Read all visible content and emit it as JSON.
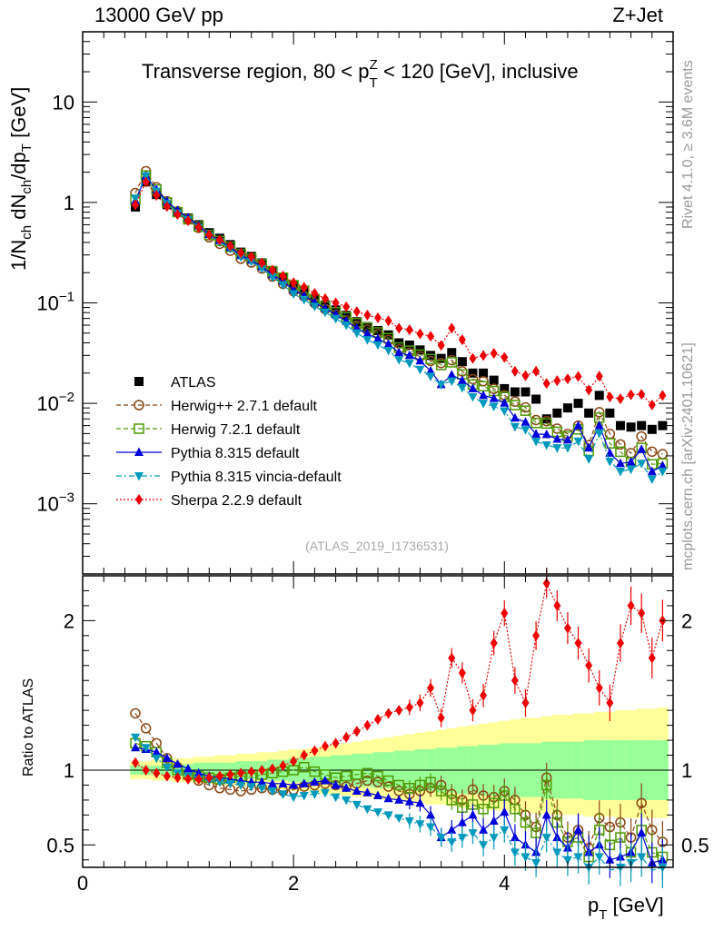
{
  "header": {
    "left": "13000 GeV pp",
    "right": "Z+Jet"
  },
  "side_labels": {
    "rivet": "Rivet 4.1.0, ≥ 3.6M events",
    "mcplots": "mcplots.cern.ch [arXiv:2401.10621]"
  },
  "chart_data": {
    "type": "scatter",
    "title": "Transverse region, 80 < p_T^Z < 120 [GeV], inclusive",
    "title_parts": {
      "a": "Transverse region, 80 < p",
      "sup": "Z",
      "sub": "T",
      "b": " < 120 [GeV], inclusive"
    },
    "watermark": "(ATLAS_2019_I1736531)",
    "xlabel": "p_T [GeV]",
    "ylabel": "1/N_ch dN_ch/dp_T [GeV]",
    "ratio_ylabel": "Ratio to ATLAS",
    "xlim": [
      0,
      5.6
    ],
    "ylim": [
      0.0002,
      50
    ],
    "ratio_ylim": [
      0.35,
      2.3
    ],
    "x_ticks": [
      0,
      2,
      4
    ],
    "y_ticks": [
      {
        "value": 10,
        "label": "10"
      },
      {
        "value": 1,
        "label": "1"
      },
      {
        "value": 0.1,
        "label": "10^-1"
      },
      {
        "value": 0.01,
        "label": "10^-2"
      },
      {
        "value": 0.001,
        "label": "10^-3"
      }
    ],
    "ratio_ticks": [
      0.5,
      1,
      2
    ],
    "x": [
      0.5,
      0.6,
      0.7,
      0.8,
      0.9,
      1.0,
      1.1,
      1.2,
      1.3,
      1.4,
      1.5,
      1.6,
      1.7,
      1.8,
      1.9,
      2.0,
      2.1,
      2.2,
      2.3,
      2.4,
      2.5,
      2.6,
      2.7,
      2.8,
      2.9,
      3.0,
      3.1,
      3.2,
      3.3,
      3.4,
      3.5,
      3.6,
      3.7,
      3.8,
      3.9,
      4.0,
      4.1,
      4.2,
      4.3,
      4.4,
      4.5,
      4.6,
      4.7,
      4.8,
      4.9,
      5.0,
      5.1,
      5.2,
      5.3,
      5.4,
      5.5
    ],
    "band": {
      "stat_lo": [
        0.97,
        0.97,
        0.97,
        0.96,
        0.96,
        0.96,
        0.95,
        0.95,
        0.95,
        0.95,
        0.94,
        0.94,
        0.94,
        0.93,
        0.93,
        0.92,
        0.92,
        0.91,
        0.91,
        0.9,
        0.9,
        0.89,
        0.89,
        0.88,
        0.88,
        0.87,
        0.87,
        0.86,
        0.86,
        0.85,
        0.85,
        0.84,
        0.84,
        0.83,
        0.83,
        0.82,
        0.82,
        0.82,
        0.82,
        0.81,
        0.81,
        0.81,
        0.81,
        0.8,
        0.8,
        0.8,
        0.8,
        0.8,
        0.8,
        0.8,
        0.8
      ],
      "stat_hi": [
        1.03,
        1.03,
        1.03,
        1.04,
        1.04,
        1.04,
        1.05,
        1.05,
        1.05,
        1.05,
        1.06,
        1.06,
        1.06,
        1.07,
        1.07,
        1.08,
        1.08,
        1.09,
        1.09,
        1.1,
        1.1,
        1.11,
        1.11,
        1.12,
        1.12,
        1.13,
        1.13,
        1.14,
        1.14,
        1.15,
        1.15,
        1.16,
        1.16,
        1.17,
        1.17,
        1.18,
        1.18,
        1.18,
        1.18,
        1.19,
        1.19,
        1.19,
        1.19,
        1.2,
        1.2,
        1.2,
        1.2,
        1.2,
        1.2,
        1.2,
        1.2
      ],
      "tot_lo": [
        0.94,
        0.94,
        0.93,
        0.93,
        0.92,
        0.92,
        0.91,
        0.91,
        0.9,
        0.9,
        0.89,
        0.89,
        0.88,
        0.88,
        0.87,
        0.86,
        0.86,
        0.85,
        0.84,
        0.84,
        0.83,
        0.82,
        0.82,
        0.81,
        0.8,
        0.8,
        0.79,
        0.78,
        0.77,
        0.77,
        0.76,
        0.75,
        0.75,
        0.74,
        0.73,
        0.73,
        0.72,
        0.72,
        0.71,
        0.71,
        0.7,
        0.7,
        0.7,
        0.69,
        0.69,
        0.69,
        0.68,
        0.68,
        0.68,
        0.68,
        0.68
      ],
      "tot_hi": [
        1.06,
        1.06,
        1.07,
        1.07,
        1.08,
        1.08,
        1.09,
        1.09,
        1.1,
        1.1,
        1.11,
        1.11,
        1.12,
        1.12,
        1.13,
        1.14,
        1.14,
        1.15,
        1.16,
        1.17,
        1.18,
        1.19,
        1.2,
        1.21,
        1.22,
        1.23,
        1.24,
        1.25,
        1.26,
        1.27,
        1.28,
        1.29,
        1.3,
        1.31,
        1.32,
        1.33,
        1.34,
        1.35,
        1.35,
        1.36,
        1.37,
        1.37,
        1.38,
        1.38,
        1.39,
        1.39,
        1.4,
        1.4,
        1.41,
        1.41,
        1.42
      ]
    },
    "series": [
      {
        "name": "ATLAS",
        "label": "ATLAS",
        "color": "#000000",
        "marker": "square-filled",
        "dash": "",
        "values": [
          0.9,
          1.6,
          1.2,
          0.95,
          0.8,
          0.7,
          0.6,
          0.5,
          0.44,
          0.38,
          0.32,
          0.29,
          0.25,
          0.21,
          0.18,
          0.15,
          0.13,
          0.11,
          0.095,
          0.085,
          0.075,
          0.065,
          0.058,
          0.053,
          0.048,
          0.04,
          0.038,
          0.034,
          0.03,
          0.028,
          0.032,
          0.026,
          0.02,
          0.02,
          0.017,
          0.014,
          0.013,
          0.013,
          0.011,
          0.007,
          0.008,
          0.009,
          0.01,
          0.008,
          0.012,
          0.008,
          0.006,
          0.0058,
          0.006,
          0.0055,
          0.006
        ]
      },
      {
        "name": "Herwig++ 2.7.1 default",
        "label": "Herwig++ 2.7.1 default",
        "color": "#8b4513",
        "marker": "circle-open",
        "dash": "5,3",
        "ratio": [
          1.38,
          1.28,
          1.18,
          1.08,
          1.02,
          0.97,
          0.93,
          0.9,
          0.88,
          0.87,
          0.86,
          0.87,
          0.88,
          0.87,
          0.86,
          0.87,
          0.89,
          0.9,
          0.91,
          0.9,
          0.89,
          0.91,
          0.93,
          0.92,
          0.89,
          0.86,
          0.84,
          0.86,
          0.88,
          0.9,
          0.84,
          0.8,
          0.87,
          0.83,
          0.82,
          0.86,
          0.8,
          0.7,
          0.62,
          0.95,
          0.7,
          0.55,
          0.6,
          0.48,
          0.68,
          0.62,
          0.65,
          0.55,
          0.78,
          0.6,
          0.52
        ]
      },
      {
        "name": "Herwig 7.2.1 default",
        "label": "Herwig 7.2.1 default",
        "color": "#4e9a06",
        "marker": "square-open",
        "dash": "5,3",
        "ratio": [
          1.18,
          1.16,
          1.12,
          1.05,
          1.0,
          0.97,
          0.96,
          0.95,
          0.94,
          0.95,
          0.96,
          0.95,
          0.97,
          0.98,
          0.99,
          1.0,
          1.02,
          0.99,
          0.97,
          0.95,
          0.96,
          0.97,
          0.98,
          0.96,
          0.93,
          0.9,
          0.88,
          0.9,
          0.92,
          0.86,
          0.8,
          0.75,
          0.77,
          0.74,
          0.78,
          0.83,
          0.74,
          0.65,
          0.58,
          0.9,
          0.65,
          0.52,
          0.55,
          0.42,
          0.6,
          0.5,
          0.55,
          0.45,
          0.6,
          0.45,
          0.42
        ]
      },
      {
        "name": "Pythia 8.315 default",
        "label": "Pythia 8.315 default",
        "color": "#0000dd",
        "marker": "triangle-up-filled",
        "dash": "",
        "ratio": [
          1.15,
          1.14,
          1.12,
          1.08,
          1.04,
          1.01,
          0.98,
          0.96,
          0.95,
          0.94,
          0.93,
          0.92,
          0.92,
          0.91,
          0.91,
          0.9,
          0.91,
          0.92,
          0.93,
          0.9,
          0.88,
          0.86,
          0.85,
          0.83,
          0.81,
          0.8,
          0.79,
          0.78,
          0.7,
          0.55,
          0.6,
          0.65,
          0.7,
          0.6,
          0.66,
          0.72,
          0.55,
          0.5,
          0.45,
          0.7,
          0.55,
          0.48,
          0.6,
          0.45,
          0.5,
          0.4,
          0.42,
          0.45,
          0.58,
          0.38,
          0.4
        ]
      },
      {
        "name": "Pythia 8.315 vincia-default",
        "label": "Pythia 8.315 vincia-default",
        "color": "#0099bb",
        "marker": "triangle-down-filled",
        "dash": "6,3,2,3",
        "ratio": [
          1.22,
          1.15,
          1.08,
          1.02,
          0.98,
          0.96,
          0.94,
          0.93,
          0.92,
          0.91,
          0.9,
          0.89,
          0.88,
          0.86,
          0.84,
          0.82,
          0.83,
          0.84,
          0.85,
          0.82,
          0.8,
          0.77,
          0.74,
          0.72,
          0.7,
          0.68,
          0.66,
          0.64,
          0.62,
          0.55,
          0.52,
          0.55,
          0.58,
          0.5,
          0.55,
          0.6,
          0.45,
          0.42,
          0.38,
          0.55,
          0.45,
          0.4,
          0.42,
          0.35,
          0.42,
          0.33,
          0.35,
          0.38,
          0.42,
          0.32,
          0.35
        ]
      },
      {
        "name": "Sherpa 2.2.9 default",
        "label": "Sherpa 2.2.9 default",
        "color": "#ee0000",
        "marker": "diamond-filled",
        "dash": "2,2",
        "ratio": [
          1.05,
          1.0,
          0.98,
          0.96,
          0.95,
          0.94,
          0.94,
          0.95,
          0.96,
          0.97,
          0.98,
          0.99,
          1.0,
          1.01,
          1.03,
          1.06,
          1.1,
          1.13,
          1.16,
          1.18,
          1.22,
          1.26,
          1.3,
          1.34,
          1.38,
          1.4,
          1.42,
          1.45,
          1.55,
          1.35,
          1.75,
          1.65,
          1.4,
          1.5,
          1.85,
          2.05,
          1.6,
          1.45,
          1.9,
          2.25,
          2.1,
          1.95,
          1.85,
          1.7,
          1.55,
          1.45,
          1.85,
          2.1,
          2.05,
          1.75,
          2.0
        ]
      }
    ]
  }
}
